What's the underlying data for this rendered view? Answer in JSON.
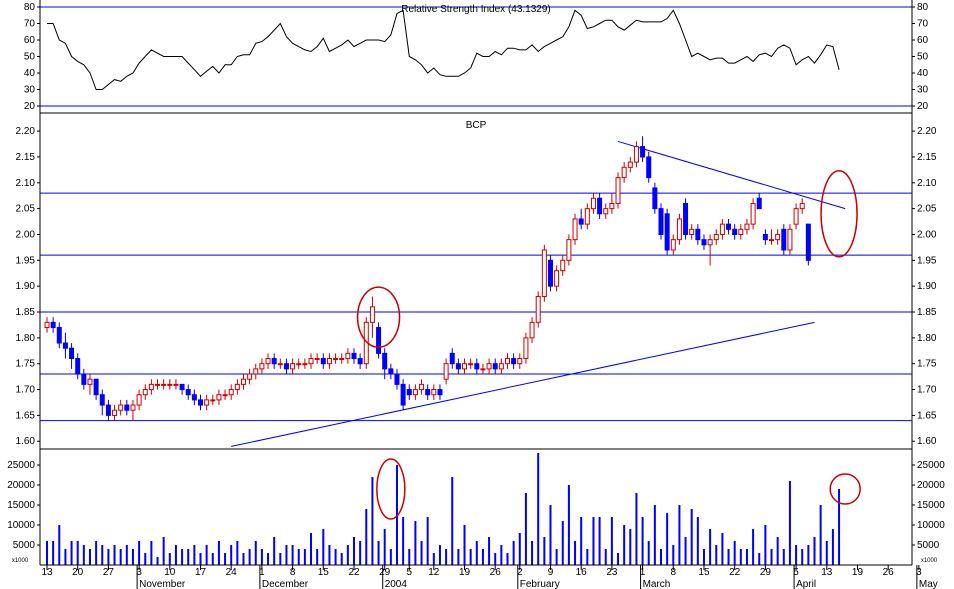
{
  "chart_data": [
    {
      "panel": "rsi",
      "type": "line",
      "title": "Relative Strength Index (43.1329)",
      "ylim": [
        20,
        80
      ],
      "yticks": [
        20,
        30,
        40,
        50,
        60,
        70,
        80
      ],
      "hlines": [
        20,
        80
      ],
      "values": [
        70,
        70,
        60,
        58,
        50,
        47,
        45,
        40,
        30,
        30,
        33,
        36,
        35,
        38,
        40,
        46,
        50,
        54,
        52,
        50,
        50,
        50,
        50,
        46,
        42,
        38,
        41,
        44,
        40,
        45,
        45,
        50,
        51,
        51,
        58,
        59,
        62,
        66,
        70,
        62,
        58,
        56,
        54,
        53,
        56,
        61,
        53,
        55,
        57,
        60,
        56,
        58,
        60,
        60,
        60,
        59,
        63,
        76,
        78,
        50,
        48,
        45,
        40,
        43,
        39,
        38,
        38,
        38,
        40,
        43,
        52,
        50,
        50,
        53,
        51,
        55,
        55,
        54,
        54,
        57,
        53,
        56,
        58,
        60,
        62,
        68,
        78,
        75,
        67,
        68,
        70,
        72,
        72,
        68,
        66,
        69,
        72,
        71,
        71,
        71,
        71,
        73,
        78,
        70,
        60,
        50,
        52,
        50,
        48,
        49,
        49,
        46,
        46,
        48,
        50,
        47,
        51,
        52,
        50,
        55,
        57,
        55,
        45,
        48,
        50,
        46,
        51,
        57,
        56,
        42
      ]
    },
    {
      "panel": "price",
      "type": "candlestick",
      "title": "BCP",
      "ylim": [
        1.585,
        2.235
      ],
      "yticks": [
        1.6,
        1.65,
        1.7,
        1.75,
        1.8,
        1.85,
        1.9,
        1.95,
        2.0,
        2.05,
        2.1,
        2.15,
        2.2
      ],
      "support_resistance_lines": [
        1.64,
        1.73,
        1.85,
        1.96,
        2.08
      ],
      "trendlines": [
        {
          "from": [
            30,
            1.59
          ],
          "to": [
            125,
            1.83
          ]
        },
        {
          "from": [
            93,
            2.18
          ],
          "to": [
            130,
            2.05
          ]
        }
      ],
      "ohlc": [
        [
          1.82,
          1.84,
          1.81,
          1.83
        ],
        [
          1.83,
          1.84,
          1.81,
          1.82
        ],
        [
          1.82,
          1.83,
          1.78,
          1.79
        ],
        [
          1.79,
          1.81,
          1.76,
          1.78
        ],
        [
          1.78,
          1.79,
          1.74,
          1.76
        ],
        [
          1.76,
          1.77,
          1.72,
          1.73
        ],
        [
          1.73,
          1.74,
          1.7,
          1.71
        ],
        [
          1.71,
          1.73,
          1.69,
          1.72
        ],
        [
          1.72,
          1.72,
          1.68,
          1.69
        ],
        [
          1.69,
          1.7,
          1.65,
          1.67
        ],
        [
          1.67,
          1.68,
          1.64,
          1.65
        ],
        [
          1.65,
          1.67,
          1.64,
          1.66
        ],
        [
          1.66,
          1.68,
          1.65,
          1.67
        ],
        [
          1.67,
          1.68,
          1.65,
          1.66
        ],
        [
          1.66,
          1.68,
          1.64,
          1.67
        ],
        [
          1.67,
          1.7,
          1.66,
          1.69
        ],
        [
          1.69,
          1.71,
          1.68,
          1.7
        ],
        [
          1.7,
          1.72,
          1.69,
          1.71
        ],
        [
          1.71,
          1.72,
          1.7,
          1.71
        ],
        [
          1.71,
          1.72,
          1.7,
          1.71
        ],
        [
          1.71,
          1.72,
          1.7,
          1.71
        ],
        [
          1.71,
          1.72,
          1.7,
          1.71
        ],
        [
          1.71,
          1.71,
          1.69,
          1.7
        ],
        [
          1.7,
          1.71,
          1.68,
          1.69
        ],
        [
          1.69,
          1.7,
          1.67,
          1.68
        ],
        [
          1.68,
          1.69,
          1.66,
          1.67
        ],
        [
          1.67,
          1.69,
          1.66,
          1.68
        ],
        [
          1.68,
          1.69,
          1.67,
          1.68
        ],
        [
          1.68,
          1.7,
          1.67,
          1.69
        ],
        [
          1.69,
          1.7,
          1.68,
          1.69
        ],
        [
          1.69,
          1.71,
          1.68,
          1.7
        ],
        [
          1.7,
          1.72,
          1.69,
          1.71
        ],
        [
          1.71,
          1.73,
          1.7,
          1.72
        ],
        [
          1.72,
          1.74,
          1.71,
          1.73
        ],
        [
          1.73,
          1.75,
          1.72,
          1.74
        ],
        [
          1.74,
          1.76,
          1.73,
          1.75
        ],
        [
          1.75,
          1.77,
          1.74,
          1.76
        ],
        [
          1.76,
          1.77,
          1.74,
          1.75
        ],
        [
          1.75,
          1.76,
          1.74,
          1.75
        ],
        [
          1.75,
          1.76,
          1.73,
          1.74
        ],
        [
          1.74,
          1.76,
          1.73,
          1.75
        ],
        [
          1.75,
          1.76,
          1.74,
          1.75
        ],
        [
          1.75,
          1.76,
          1.74,
          1.75
        ],
        [
          1.75,
          1.77,
          1.74,
          1.76
        ],
        [
          1.76,
          1.77,
          1.75,
          1.76
        ],
        [
          1.76,
          1.77,
          1.74,
          1.75
        ],
        [
          1.75,
          1.77,
          1.74,
          1.76
        ],
        [
          1.76,
          1.77,
          1.75,
          1.76
        ],
        [
          1.76,
          1.77,
          1.75,
          1.76
        ],
        [
          1.76,
          1.78,
          1.75,
          1.77
        ],
        [
          1.77,
          1.78,
          1.75,
          1.76
        ],
        [
          1.76,
          1.77,
          1.74,
          1.75
        ],
        [
          1.75,
          1.84,
          1.74,
          1.83
        ],
        [
          1.83,
          1.88,
          1.8,
          1.86
        ],
        [
          1.82,
          1.83,
          1.76,
          1.77
        ],
        [
          1.77,
          1.78,
          1.72,
          1.74
        ],
        [
          1.74,
          1.75,
          1.72,
          1.73
        ],
        [
          1.73,
          1.74,
          1.7,
          1.71
        ],
        [
          1.71,
          1.72,
          1.66,
          1.67
        ],
        [
          1.7,
          1.71,
          1.68,
          1.69
        ],
        [
          1.69,
          1.71,
          1.68,
          1.7
        ],
        [
          1.7,
          1.72,
          1.69,
          1.71
        ],
        [
          1.7,
          1.71,
          1.68,
          1.69
        ],
        [
          1.69,
          1.71,
          1.68,
          1.7
        ],
        [
          1.7,
          1.71,
          1.68,
          1.69
        ],
        [
          1.72,
          1.76,
          1.71,
          1.75
        ],
        [
          1.77,
          1.78,
          1.74,
          1.75
        ],
        [
          1.75,
          1.76,
          1.73,
          1.74
        ],
        [
          1.74,
          1.76,
          1.73,
          1.75
        ],
        [
          1.75,
          1.76,
          1.74,
          1.75
        ],
        [
          1.75,
          1.76,
          1.73,
          1.74
        ],
        [
          1.74,
          1.75,
          1.73,
          1.74
        ],
        [
          1.74,
          1.76,
          1.73,
          1.75
        ],
        [
          1.75,
          1.76,
          1.73,
          1.74
        ],
        [
          1.74,
          1.76,
          1.73,
          1.75
        ],
        [
          1.75,
          1.77,
          1.74,
          1.76
        ],
        [
          1.76,
          1.77,
          1.74,
          1.75
        ],
        [
          1.75,
          1.77,
          1.74,
          1.76
        ],
        [
          1.76,
          1.81,
          1.75,
          1.8
        ],
        [
          1.8,
          1.84,
          1.79,
          1.83
        ],
        [
          1.83,
          1.89,
          1.82,
          1.88
        ],
        [
          1.88,
          1.98,
          1.87,
          1.97
        ],
        [
          1.95,
          1.96,
          1.89,
          1.9
        ],
        [
          1.9,
          1.94,
          1.89,
          1.93
        ],
        [
          1.93,
          1.96,
          1.92,
          1.95
        ],
        [
          1.95,
          2.0,
          1.94,
          1.99
        ],
        [
          1.99,
          2.04,
          1.98,
          2.03
        ],
        [
          2.03,
          2.05,
          2.01,
          2.02
        ],
        [
          2.02,
          2.06,
          2.01,
          2.05
        ],
        [
          2.05,
          2.08,
          2.04,
          2.07
        ],
        [
          2.07,
          2.08,
          2.03,
          2.04
        ],
        [
          2.04,
          2.06,
          2.03,
          2.05
        ],
        [
          2.05,
          2.08,
          2.04,
          2.06
        ],
        [
          2.06,
          2.12,
          2.05,
          2.11
        ],
        [
          2.11,
          2.14,
          2.1,
          2.13
        ],
        [
          2.13,
          2.15,
          2.12,
          2.14
        ],
        [
          2.14,
          2.18,
          2.13,
          2.17
        ],
        [
          2.17,
          2.19,
          2.14,
          2.15
        ],
        [
          2.15,
          2.16,
          2.1,
          2.11
        ],
        [
          2.09,
          2.1,
          2.04,
          2.05
        ],
        [
          2.05,
          2.06,
          1.99,
          2.0
        ],
        [
          2.04,
          2.05,
          1.96,
          1.97
        ],
        [
          1.97,
          2.0,
          1.96,
          1.99
        ],
        [
          1.99,
          2.04,
          1.98,
          2.03
        ],
        [
          2.06,
          2.07,
          1.99,
          2.0
        ],
        [
          2.0,
          2.02,
          1.99,
          2.01
        ],
        [
          2.01,
          2.02,
          1.98,
          1.99
        ],
        [
          1.99,
          2.0,
          1.97,
          1.98
        ],
        [
          1.98,
          2.0,
          1.94,
          1.99
        ],
        [
          1.99,
          2.01,
          1.98,
          2.0
        ],
        [
          2.0,
          2.03,
          1.99,
          2.02
        ],
        [
          2.02,
          2.03,
          2.0,
          2.01
        ],
        [
          2.01,
          2.02,
          1.99,
          2.0
        ],
        [
          2.0,
          2.02,
          1.99,
          2.01
        ],
        [
          2.01,
          2.03,
          2.0,
          2.02
        ],
        [
          2.02,
          2.07,
          2.01,
          2.06
        ],
        [
          2.07,
          2.08,
          2.05,
          2.05
        ],
        [
          2.0,
          2.01,
          1.98,
          1.99
        ],
        [
          1.99,
          2.01,
          1.98,
          1.99
        ],
        [
          1.99,
          2.01,
          1.98,
          2.0
        ],
        [
          2.01,
          2.02,
          1.96,
          1.97
        ],
        [
          1.97,
          2.02,
          1.96,
          2.01
        ],
        [
          2.02,
          2.06,
          2.01,
          2.05
        ],
        [
          2.05,
          2.07,
          2.04,
          2.06
        ],
        [
          2.02,
          2.02,
          1.94,
          1.95
        ]
      ]
    },
    {
      "panel": "volume",
      "type": "bar",
      "ylim": [
        0,
        29000
      ],
      "yticks": [
        5000,
        10000,
        15000,
        20000,
        25000
      ],
      "unit_label": "x1000",
      "values": [
        6000,
        6000,
        10000,
        4000,
        6000,
        6000,
        5000,
        4000,
        6000,
        5000,
        4000,
        5000,
        4000,
        5000,
        4000,
        6000,
        3000,
        6000,
        2000,
        7000,
        3000,
        5000,
        4000,
        4000,
        5000,
        3000,
        5000,
        3000,
        6000,
        3000,
        5000,
        6000,
        3000,
        4000,
        6000,
        4000,
        3000,
        7000,
        3000,
        5000,
        5000,
        4000,
        4000,
        8000,
        4000,
        9000,
        5000,
        4000,
        3000,
        5000,
        7000,
        6000,
        14000,
        22000,
        6000,
        9000,
        4000,
        25000,
        12000,
        4000,
        11000,
        6000,
        12000,
        3000,
        5000,
        4000,
        22000,
        4000,
        10000,
        4000,
        6000,
        4000,
        7000,
        3000,
        5000,
        3000,
        6000,
        8000,
        18000,
        6000,
        28000,
        7000,
        15000,
        4000,
        11000,
        20000,
        6000,
        12000,
        4000,
        12000,
        12000,
        4000,
        12000,
        3000,
        10000,
        9000,
        18000,
        12000,
        6000,
        15000,
        4000,
        13000,
        5000,
        15000,
        7000,
        14000,
        12000,
        4000,
        9000,
        5000,
        8000,
        4000,
        6000,
        4000,
        4000,
        9000,
        3000,
        10000,
        4000,
        7000,
        4000,
        21000,
        5000,
        4000,
        5000,
        7000,
        15000,
        6000,
        9000,
        19000
      ],
      "x_tick_labels": [
        "13",
        "20",
        "27",
        "3",
        "10",
        "17",
        "24",
        "1",
        "8",
        "15",
        "22",
        "29",
        "5",
        "12",
        "19",
        "26",
        "2",
        "9",
        "16",
        "23",
        "1",
        "8",
        "15",
        "22",
        "29",
        "5",
        "13",
        "19",
        "26",
        "3"
      ],
      "month_labels": [
        "November",
        "December",
        "2004",
        "February",
        "March",
        "April",
        "May"
      ]
    }
  ],
  "annotation_color": "#d00000",
  "line_color": "#0000ff",
  "up_candle_color": "#d00000",
  "down_candle_color": "#0000ff"
}
